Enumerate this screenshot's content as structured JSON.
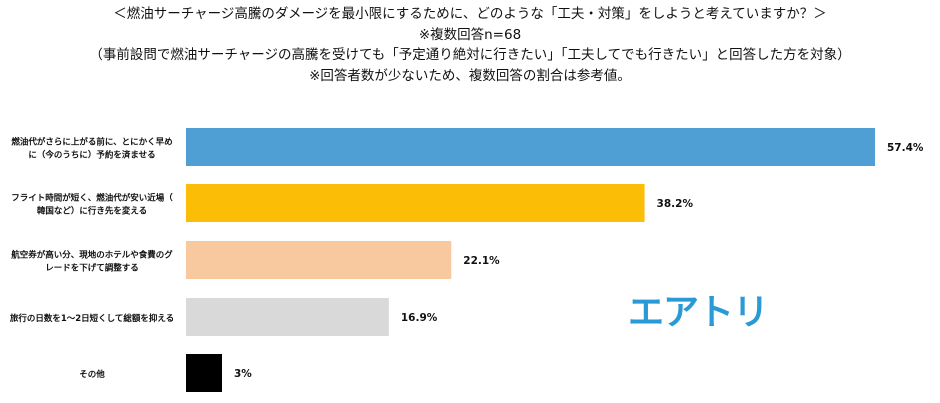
{
  "header": {
    "line1": "＜燃油サーチャージ高騰のダメージを最小限にするために、どのような「工夫・対策」をしようと考えていますか？＞",
    "line2": "※複数回答n=68",
    "line3": "（事前設問で燃油サーチャージの高騰を受けても「予定通り絶対に行きたい」「工夫してでも行きたい」と回答した方を対象）",
    "line4": "※回答者数が少ないため、複数回答の割合は参考値。"
  },
  "logo": {
    "text": "エアトリ",
    "color": "#2a9ad6"
  },
  "chart_data": {
    "type": "bar",
    "orientation": "horizontal",
    "categories": [
      [
        "燃油代がさらに上がる前に、とにかく早め",
        "に（今のうちに）予約を済ませる"
      ],
      [
        "フライト時間が短く、燃油代が安い近場（",
        "韓国など）に行き先を変える"
      ],
      [
        "航空券が高い分、現地のホテルや食費のグ",
        "レードを下げて調整する"
      ],
      [
        "旅行の日数を1～2日短くして総額を抑える"
      ],
      [
        "その他"
      ]
    ],
    "values": [
      57.4,
      38.2,
      22.1,
      16.9,
      3
    ],
    "value_labels": [
      "57.4%",
      "38.2%",
      "22.1%",
      "16.9%",
      "3%"
    ],
    "colors": [
      "#4f9fd4",
      "#fbbd05",
      "#f8c99e",
      "#d9d9d9",
      "#000000"
    ],
    "xlim": [
      0,
      60
    ],
    "grid": false,
    "legend": "none"
  }
}
